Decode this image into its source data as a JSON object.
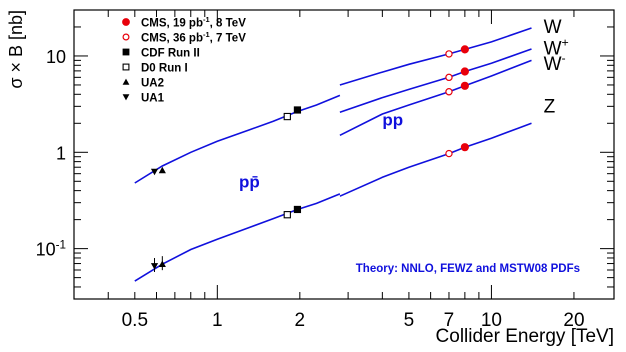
{
  "chart_data": {
    "type": "line",
    "title": "",
    "xlabel": "Collider Energy [TeV]",
    "ylabel": "σ × B  [nb]",
    "xscale": "log",
    "yscale": "log",
    "xlim": [
      0.3,
      28
    ],
    "ylim": [
      0.03,
      30
    ],
    "x_ticks": [
      {
        "value": 0.5,
        "label": "0.5"
      },
      {
        "value": 1,
        "label": "1"
      },
      {
        "value": 2,
        "label": "2"
      },
      {
        "value": 5,
        "label": "5"
      },
      {
        "value": 7,
        "label": "7"
      },
      {
        "value": 10,
        "label": "10"
      },
      {
        "value": 20,
        "label": "20"
      }
    ],
    "y_ticks": [
      {
        "value": 0.1,
        "label": "10",
        "sup": "-1"
      },
      {
        "value": 1,
        "label": "1",
        "sup": ""
      },
      {
        "value": 10,
        "label": "10",
        "sup": ""
      }
    ],
    "grid": false,
    "legend_position": "top-left",
    "legend": [
      {
        "label": "CMS, 19 pb",
        "sup": "-1",
        "rest": ", 8 TeV",
        "marker": "circle-filled",
        "color": "#e8000b"
      },
      {
        "label": "CMS, 36 pb",
        "sup": "-1",
        "rest": ", 7 TeV",
        "marker": "circle-open",
        "color": "#e8000b"
      },
      {
        "label": "CDF Run II",
        "sup": "",
        "rest": "",
        "marker": "square-filled",
        "color": "#000000"
      },
      {
        "label": "D0 Run I",
        "sup": "",
        "rest": "",
        "marker": "square-open",
        "color": "#000000"
      },
      {
        "label": "UA2",
        "sup": "",
        "rest": "",
        "marker": "triangle-up",
        "color": "#000000"
      },
      {
        "label": "UA1",
        "sup": "",
        "rest": "",
        "marker": "triangle-down",
        "color": "#000000"
      }
    ],
    "region_labels": [
      {
        "text": "pp̄",
        "x": 1.2,
        "y": 0.43,
        "color": "#1010dd"
      },
      {
        "text": "pp",
        "x": 4.0,
        "y": 1.9,
        "color": "#1010dd"
      }
    ],
    "annotation": {
      "text": "Theory: NNLO, FEWZ and MSTW08 PDFs",
      "x": 3.2,
      "y": 0.057,
      "color": "#1010dd"
    },
    "curve_color": "#1010dd",
    "ppbar_curves": [
      {
        "name": "",
        "x": [
          0.5,
          0.63,
          0.8,
          1.0,
          1.3,
          1.6,
          1.96,
          2.3,
          2.8
        ],
        "y": [
          0.48,
          0.72,
          1.0,
          1.3,
          1.7,
          2.1,
          2.65,
          3.1,
          3.9
        ]
      },
      {
        "name": "",
        "x": [
          0.5,
          0.63,
          0.8,
          1.0,
          1.3,
          1.6,
          1.96,
          2.3,
          2.8
        ],
        "y": [
          0.046,
          0.069,
          0.098,
          0.125,
          0.165,
          0.205,
          0.255,
          0.295,
          0.37
        ]
      }
    ],
    "pp_curves": [
      {
        "name": "W",
        "x": [
          2.8,
          4,
          5,
          7,
          8,
          10,
          14
        ],
        "y": [
          5.0,
          6.8,
          8.2,
          10.5,
          11.7,
          14.0,
          19.5
        ]
      },
      {
        "name": "W+",
        "x": [
          2.8,
          4,
          5,
          7,
          8,
          10,
          14
        ],
        "y": [
          2.6,
          3.7,
          4.5,
          6.0,
          6.9,
          8.4,
          11.8
        ]
      },
      {
        "name": "W-",
        "x": [
          2.8,
          4,
          5,
          7,
          8,
          10,
          14
        ],
        "y": [
          1.5,
          2.5,
          3.1,
          4.25,
          4.9,
          6.2,
          9.0
        ]
      },
      {
        "name": "Z",
        "x": [
          2.8,
          4,
          5,
          7,
          8,
          10,
          14
        ],
        "y": [
          0.35,
          0.55,
          0.7,
          0.97,
          1.13,
          1.4,
          2.0
        ]
      }
    ],
    "curve_end_labels": [
      {
        "text": "W",
        "sup": "",
        "x": 15.5,
        "y": 20
      },
      {
        "text": "W",
        "sup": "+",
        "x": 15.5,
        "y": 12
      },
      {
        "text": "W",
        "sup": "-",
        "x": 15.5,
        "y": 8.3
      },
      {
        "text": "Z",
        "sup": "",
        "x": 15.5,
        "y": 3.0
      }
    ],
    "points": [
      {
        "source": "CMS, 19 pb-1, 8 TeV",
        "marker": "circle-filled",
        "x": 8,
        "y": [
          11.7,
          6.9,
          4.9,
          1.13
        ]
      },
      {
        "source": "CMS, 36 pb-1, 7 TeV",
        "marker": "circle-open",
        "x": 7,
        "y": [
          10.5,
          6.0,
          4.25,
          0.97
        ]
      },
      {
        "source": "CDF Run II",
        "marker": "square-filled",
        "x": 1.96,
        "y": [
          2.75,
          0.255
        ]
      },
      {
        "source": "D0 Run I",
        "marker": "square-open",
        "x": 1.8,
        "y": [
          2.35,
          0.225
        ]
      },
      {
        "source": "UA2",
        "marker": "triangle-up",
        "x": 0.63,
        "y": [
          0.65,
          0.069
        ]
      },
      {
        "source": "UA1",
        "marker": "triangle-down",
        "x": 0.59,
        "y": [
          0.63,
          0.066
        ]
      }
    ]
  }
}
